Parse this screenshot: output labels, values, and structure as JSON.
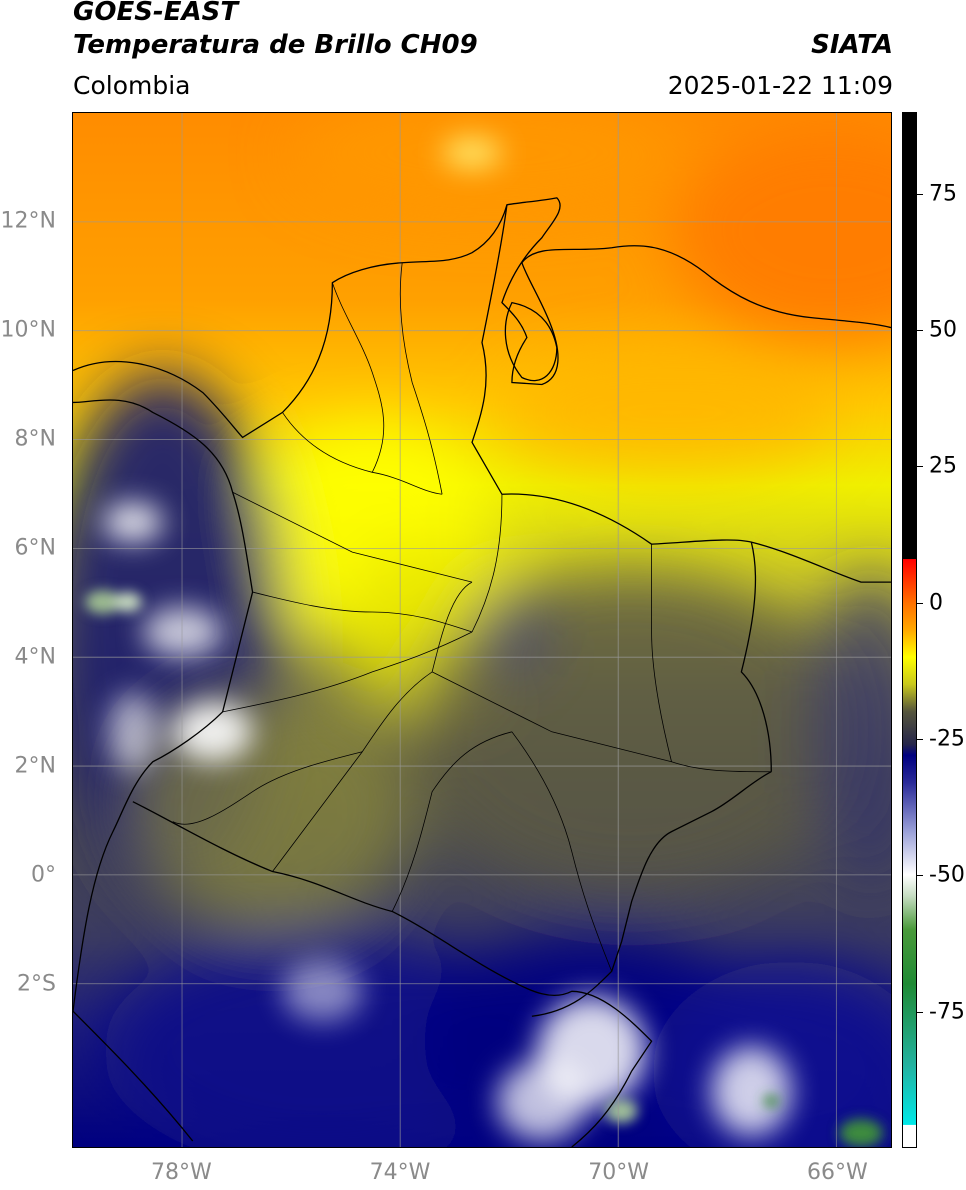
{
  "header": {
    "satellite": "GOES-EAST",
    "product": "Temperatura de Brillo CH09",
    "region": "Colombia",
    "agency": "SIATA",
    "datetime": "2025-01-22 11:09"
  },
  "map": {
    "extent": {
      "lon_min": -80,
      "lon_max": -65,
      "lat_min": -5,
      "lat_max": 14
    },
    "lat_ticks": [
      {
        "value": 12,
        "label": "12°N"
      },
      {
        "value": 10,
        "label": "10°N"
      },
      {
        "value": 8,
        "label": "8°N"
      },
      {
        "value": 6,
        "label": "6°N"
      },
      {
        "value": 4,
        "label": "4°N"
      },
      {
        "value": 2,
        "label": "2°N"
      },
      {
        "value": 0,
        "label": "0°"
      },
      {
        "value": -2,
        "label": "2°S"
      }
    ],
    "lon_ticks": [
      {
        "value": -78,
        "label": "78°W"
      },
      {
        "value": -74,
        "label": "74°W"
      },
      {
        "value": -70,
        "label": "70°W"
      },
      {
        "value": -66,
        "label": "66°W"
      }
    ],
    "gridlines": true
  },
  "colorbar": {
    "min": -100,
    "max": 90,
    "ticks": [
      {
        "value": 75,
        "label": "75"
      },
      {
        "value": 50,
        "label": "50"
      },
      {
        "value": 25,
        "label": "25"
      },
      {
        "value": 0,
        "label": "0"
      },
      {
        "value": -25,
        "label": "-25"
      },
      {
        "value": -50,
        "label": "-50"
      },
      {
        "value": -75,
        "label": "-75"
      }
    ],
    "stops": [
      {
        "value": -100,
        "color": "#ffffff"
      },
      {
        "value": -96,
        "color": "#ffffff"
      },
      {
        "value": -95.9,
        "color": "#00e8e8"
      },
      {
        "value": -85,
        "color": "#22b2a0"
      },
      {
        "value": -70,
        "color": "#1f8a34"
      },
      {
        "value": -60,
        "color": "#4a9a3a"
      },
      {
        "value": -54,
        "color": "#c4dcc0"
      },
      {
        "value": -50,
        "color": "#ffffff"
      },
      {
        "value": -42,
        "color": "#9aa0d8"
      },
      {
        "value": -33,
        "color": "#2a2a98"
      },
      {
        "value": -28,
        "color": "#000080"
      },
      {
        "value": -26,
        "color": "#26264a"
      },
      {
        "value": -20,
        "color": "#55553c"
      },
      {
        "value": -15,
        "color": "#c8c81c"
      },
      {
        "value": -10,
        "color": "#ffff00"
      },
      {
        "value": -5,
        "color": "#ffa800"
      },
      {
        "value": 0,
        "color": "#ff7000"
      },
      {
        "value": 8,
        "color": "#ff0000"
      },
      {
        "value": 8.1,
        "color": "#000000"
      },
      {
        "value": 90,
        "color": "#000000"
      }
    ]
  }
}
